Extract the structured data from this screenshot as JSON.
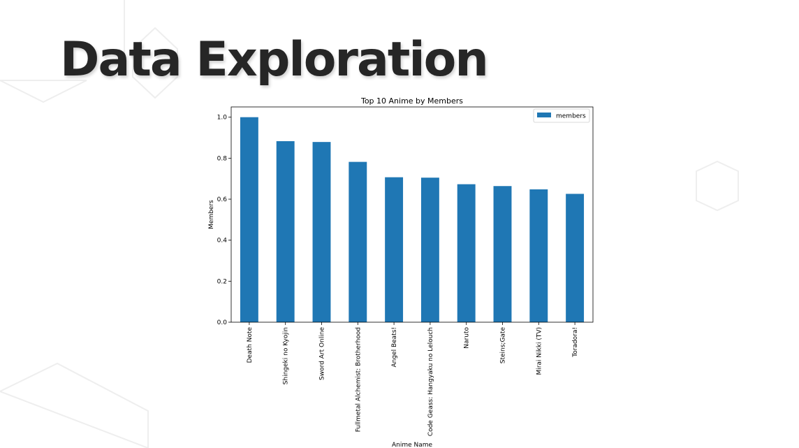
{
  "slide": {
    "title": "Data Exploration"
  },
  "chart_data": {
    "type": "bar",
    "title": "Top 10 Anime by Members",
    "xlabel": "Anime Name",
    "ylabel": "Members",
    "categories": [
      "Death Note",
      "Shingeki no Kyojin",
      "Sword Art Online",
      "Fullmetal Alchemist: Brotherhood",
      "Angel Beats!",
      "Code Geass: Hangyaku no Lelouch",
      "Naruto",
      "Steins;Gate",
      "Mirai Nikki (TV)",
      "Toradora!"
    ],
    "series": [
      {
        "name": "members",
        "color": "#1f77b4",
        "values": [
          1.0,
          0.883,
          0.879,
          0.782,
          0.707,
          0.705,
          0.673,
          0.664,
          0.648,
          0.626
        ]
      }
    ],
    "ylim": [
      0,
      1.05
    ],
    "yticks": [
      "0.0",
      "0.2",
      "0.4",
      "0.6",
      "0.8",
      "1.0"
    ],
    "legend_position": "top-right",
    "grid": false
  }
}
